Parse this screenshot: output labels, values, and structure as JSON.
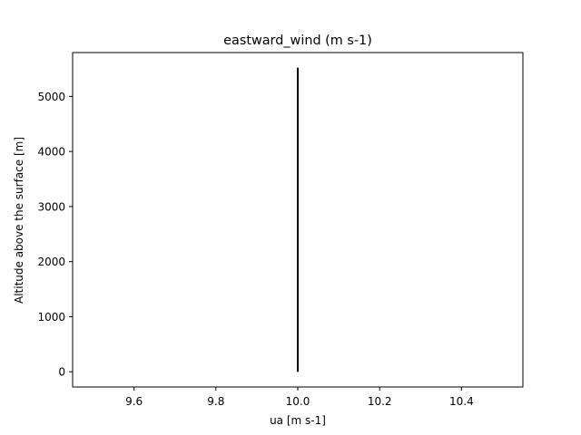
{
  "chart_data": {
    "type": "line",
    "title": "eastward_wind (m s-1)",
    "xlabel": "ua [m s-1]",
    "ylabel": "Altitude above the surface [m]",
    "xlim": [
      9.45,
      10.55
    ],
    "ylim": [
      -276,
      5796
    ],
    "xticks": [
      9.6,
      9.8,
      10.0,
      10.2,
      10.4
    ],
    "xtick_labels": [
      "9.6",
      "9.8",
      "10.0",
      "10.2",
      "10.4"
    ],
    "yticks": [
      0,
      1000,
      2000,
      3000,
      4000,
      5000
    ],
    "ytick_labels": [
      "0",
      "1000",
      "2000",
      "3000",
      "4000",
      "5000"
    ],
    "grid": false,
    "series": [
      {
        "color": "#000000",
        "x": [
          10.0,
          10.0
        ],
        "y": [
          0,
          5520
        ]
      }
    ]
  }
}
